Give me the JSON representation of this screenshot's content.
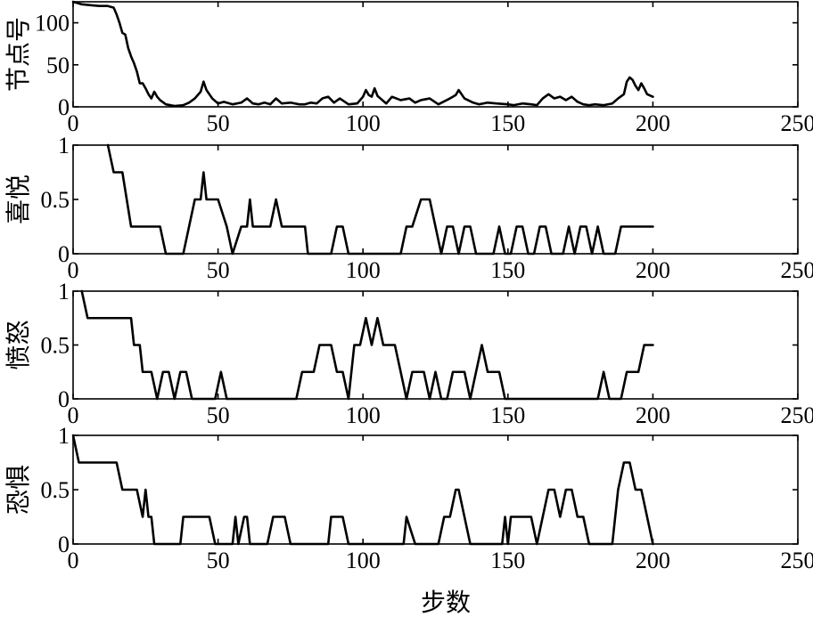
{
  "chart_data": {
    "type": "line",
    "xlabel": "步数",
    "xlim": [
      0,
      250
    ],
    "xticks": [
      0,
      50,
      100,
      150,
      200,
      250
    ],
    "grid": false,
    "panels": [
      {
        "ylabel": "节点号",
        "ylim": [
          0,
          125
        ],
        "yticks": [
          0,
          50,
          100
        ],
        "x": [
          0,
          3,
          6,
          9,
          12,
          14,
          15,
          16,
          17,
          18,
          19,
          20,
          21,
          22,
          23,
          24,
          25,
          26,
          27,
          28,
          29,
          30,
          32,
          35,
          38,
          40,
          42,
          44,
          45,
          46,
          48,
          50,
          52,
          55,
          58,
          60,
          62,
          64,
          66,
          68,
          70,
          72,
          75,
          78,
          80,
          82,
          84,
          86,
          88,
          90,
          92,
          95,
          98,
          100,
          101,
          102,
          103,
          104,
          105,
          106,
          108,
          110,
          113,
          116,
          118,
          120,
          123,
          126,
          130,
          132,
          133,
          135,
          138,
          140,
          143,
          146,
          150,
          152,
          155,
          158,
          160,
          162,
          164,
          166,
          168,
          170,
          172,
          174,
          176,
          178,
          180,
          183,
          186,
          188,
          190,
          191,
          192,
          193,
          194,
          195,
          196,
          197,
          198,
          200
        ],
        "y": [
          125,
          122,
          121,
          120,
          120,
          118,
          110,
          100,
          88,
          86,
          70,
          60,
          52,
          42,
          28,
          28,
          22,
          15,
          10,
          18,
          12,
          8,
          3,
          1,
          2,
          5,
          10,
          18,
          30,
          20,
          10,
          4,
          6,
          3,
          5,
          10,
          4,
          3,
          5,
          3,
          10,
          4,
          5,
          3,
          3,
          5,
          4,
          10,
          12,
          5,
          10,
          3,
          4,
          12,
          20,
          14,
          12,
          22,
          13,
          10,
          4,
          12,
          8,
          10,
          5,
          8,
          10,
          3,
          10,
          14,
          20,
          10,
          5,
          3,
          5,
          4,
          3,
          2,
          4,
          3,
          2,
          10,
          15,
          10,
          12,
          8,
          12,
          6,
          3,
          2,
          3,
          2,
          4,
          10,
          15,
          30,
          35,
          32,
          25,
          20,
          28,
          22,
          15,
          12
        ]
      },
      {
        "ylabel": "喜悦",
        "ylim": [
          0,
          1
        ],
        "yticks": [
          0,
          0.5,
          1
        ],
        "x": [
          12,
          14,
          17,
          20,
          30,
          32,
          38,
          42,
          44,
          45,
          46,
          48,
          50,
          53,
          55,
          58,
          60,
          61,
          62,
          68,
          70,
          72,
          80,
          81,
          89,
          91,
          93,
          95,
          113,
          115,
          117,
          120,
          123,
          125,
          127,
          129,
          131,
          133,
          135,
          137,
          139,
          145,
          147,
          149,
          151,
          153,
          155,
          157,
          159,
          161,
          163,
          165,
          167,
          169,
          171,
          173,
          175,
          177,
          179,
          181,
          183,
          185,
          187,
          189,
          200
        ],
        "y": [
          1,
          0.75,
          0.75,
          0.25,
          0.25,
          0,
          0,
          0.5,
          0.5,
          0.75,
          0.5,
          0.5,
          0.5,
          0.25,
          0,
          0.25,
          0.25,
          0.5,
          0.25,
          0.25,
          0.5,
          0.25,
          0.25,
          0,
          0,
          0.25,
          0.25,
          0,
          0,
          0.25,
          0.25,
          0.5,
          0.5,
          0.25,
          0,
          0.25,
          0.25,
          0,
          0.25,
          0.25,
          0,
          0,
          0.25,
          0,
          0,
          0.25,
          0.25,
          0,
          0,
          0.25,
          0.25,
          0,
          0,
          0,
          0.25,
          0,
          0.25,
          0.25,
          0,
          0.25,
          0,
          0,
          0,
          0.25,
          0.25
        ]
      },
      {
        "ylabel": "愤怒",
        "ylim": [
          0,
          1
        ],
        "yticks": [
          0,
          0.5,
          1
        ],
        "x": [
          3,
          5,
          9,
          12,
          20,
          21,
          22,
          23,
          24,
          25,
          27,
          29,
          31,
          33,
          35,
          37,
          39,
          41,
          43,
          49,
          51,
          53,
          77,
          79,
          83,
          85,
          89,
          91,
          93,
          95,
          97,
          99,
          101,
          103,
          105,
          107,
          111,
          113,
          115,
          117,
          121,
          123,
          125,
          127,
          129,
          131,
          135,
          137,
          139,
          141,
          143,
          147,
          149,
          181,
          183,
          185,
          187,
          189,
          191,
          195,
          197,
          199,
          200
        ],
        "y": [
          1,
          0.75,
          0.75,
          0.75,
          0.75,
          0.5,
          0.5,
          0.5,
          0.25,
          0.25,
          0.25,
          0,
          0.25,
          0.25,
          0,
          0.25,
          0.25,
          0,
          0,
          0,
          0.25,
          0,
          0,
          0.25,
          0.25,
          0.5,
          0.5,
          0.25,
          0.25,
          0,
          0.5,
          0.5,
          0.75,
          0.5,
          0.75,
          0.5,
          0.5,
          0.25,
          0,
          0.25,
          0.25,
          0,
          0.25,
          0,
          0,
          0.25,
          0.25,
          0,
          0.25,
          0.5,
          0.25,
          0.25,
          0,
          0,
          0.25,
          0,
          0,
          0,
          0.25,
          0.25,
          0.5,
          0.5,
          0.5
        ]
      },
      {
        "ylabel": "恐惧",
        "ylim": [
          0,
          1
        ],
        "yticks": [
          0,
          0.5,
          1
        ],
        "x": [
          0,
          2,
          5,
          10,
          15,
          17,
          22,
          24,
          25,
          26,
          27,
          28,
          30,
          37,
          38,
          42,
          47,
          49,
          55,
          56,
          57,
          59,
          60,
          61,
          63,
          67,
          69,
          73,
          75,
          88,
          89,
          93,
          95,
          114,
          115,
          118,
          126,
          128,
          130,
          132,
          133,
          135,
          137,
          148,
          149,
          150,
          151,
          152,
          153,
          158,
          160,
          162,
          164,
          166,
          168,
          170,
          172,
          174,
          176,
          178,
          186,
          188,
          190,
          192,
          194,
          196,
          198,
          200
        ],
        "y": [
          1,
          0.75,
          0.75,
          0.75,
          0.75,
          0.5,
          0.5,
          0.25,
          0.5,
          0.25,
          0.25,
          0,
          0,
          0,
          0.25,
          0.25,
          0.25,
          0,
          0,
          0.25,
          0,
          0.25,
          0.25,
          0,
          0,
          0,
          0.25,
          0.25,
          0,
          0,
          0.25,
          0.25,
          0,
          0,
          0.25,
          0,
          0,
          0.25,
          0.25,
          0.5,
          0.5,
          0.25,
          0,
          0,
          0.25,
          0,
          0.25,
          0.25,
          0.25,
          0.25,
          0,
          0.25,
          0.5,
          0.5,
          0.25,
          0.5,
          0.5,
          0.25,
          0.25,
          0,
          0,
          0.5,
          0.75,
          0.75,
          0.5,
          0.5,
          0.25,
          0
        ]
      }
    ]
  }
}
